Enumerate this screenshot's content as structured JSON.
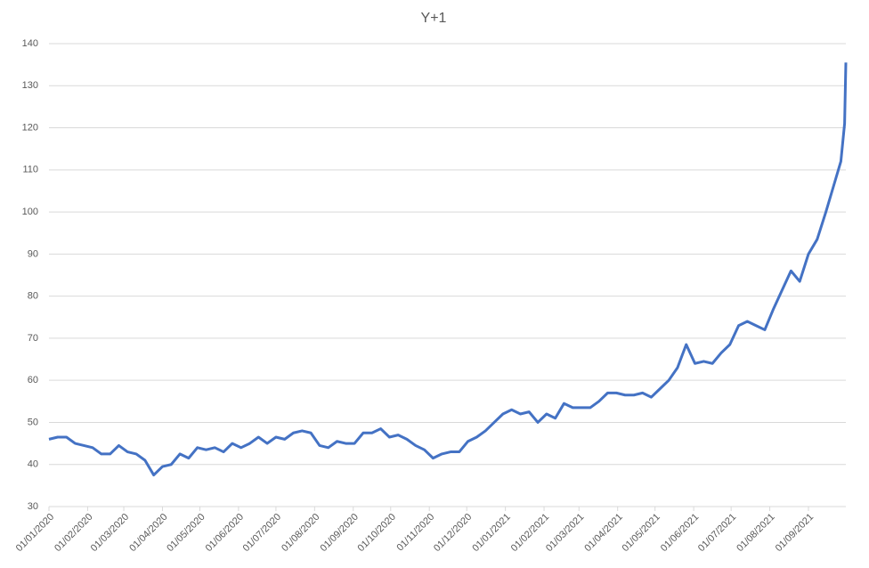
{
  "chart_data": {
    "type": "line",
    "title": "Y+1",
    "x": [
      "01/01/2020",
      "08/01/2020",
      "15/01/2020",
      "22/01/2020",
      "29/01/2020",
      "05/02/2020",
      "12/02/2020",
      "19/02/2020",
      "26/02/2020",
      "04/03/2020",
      "11/03/2020",
      "18/03/2020",
      "25/03/2020",
      "01/04/2020",
      "08/04/2020",
      "15/04/2020",
      "22/04/2020",
      "29/04/2020",
      "06/05/2020",
      "13/05/2020",
      "20/05/2020",
      "27/05/2020",
      "03/06/2020",
      "10/06/2020",
      "17/06/2020",
      "24/06/2020",
      "01/07/2020",
      "08/07/2020",
      "15/07/2020",
      "22/07/2020",
      "29/07/2020",
      "05/08/2020",
      "12/08/2020",
      "19/08/2020",
      "26/08/2020",
      "02/09/2020",
      "09/09/2020",
      "16/09/2020",
      "23/09/2020",
      "30/09/2020",
      "07/10/2020",
      "14/10/2020",
      "21/10/2020",
      "28/10/2020",
      "04/11/2020",
      "11/11/2020",
      "18/11/2020",
      "25/11/2020",
      "02/12/2020",
      "09/12/2020",
      "16/12/2020",
      "23/12/2020",
      "30/12/2020",
      "06/01/2021",
      "13/01/2021",
      "20/01/2021",
      "27/01/2021",
      "03/02/2021",
      "10/02/2021",
      "17/02/2021",
      "24/02/2021",
      "03/03/2021",
      "10/03/2021",
      "17/03/2021",
      "24/03/2021",
      "31/03/2021",
      "07/04/2021",
      "14/04/2021",
      "21/04/2021",
      "28/04/2021",
      "05/05/2021",
      "12/05/2021",
      "19/05/2021",
      "26/05/2021",
      "02/06/2021",
      "09/06/2021",
      "16/06/2021",
      "23/06/2021",
      "30/06/2021",
      "07/07/2021",
      "14/07/2021",
      "21/07/2021",
      "28/07/2021",
      "04/08/2021",
      "11/08/2021",
      "18/08/2021",
      "25/08/2021",
      "01/09/2021",
      "08/09/2021",
      "15/09/2021",
      "22/09/2021",
      "27/09/2021",
      "30/09/2021",
      "01/10/2021"
    ],
    "series": [
      {
        "color": "#4472c4",
        "values": [
          46,
          46.5,
          46.5,
          45,
          44.5,
          44,
          42.5,
          42.5,
          44.5,
          43,
          42.5,
          41,
          37.5,
          39.5,
          40,
          42.5,
          41.5,
          44,
          43.5,
          44,
          43,
          45,
          44,
          45,
          46.5,
          45,
          46.5,
          46,
          47.5,
          48,
          47.5,
          44.5,
          44,
          45.5,
          45,
          45,
          47.5,
          47.5,
          48.5,
          46.5,
          47,
          46,
          44.5,
          43.5,
          41.5,
          42.5,
          43,
          43,
          45.5,
          46.5,
          48,
          50,
          52,
          53,
          52,
          52.5,
          50,
          52,
          51,
          54.5,
          53.5,
          53.5,
          53.5,
          55,
          57,
          57,
          56.5,
          56.5,
          57,
          56,
          58,
          60,
          63,
          68.5,
          64,
          64.5,
          64,
          66.5,
          68.5,
          73,
          74,
          73,
          72,
          77,
          81.5,
          86,
          83.5,
          90,
          93.5,
          100,
          107,
          112,
          121,
          135.5
        ]
      }
    ],
    "xlim": [
      "01/01/2020",
      "01/10/2021"
    ],
    "xticks": [
      "01/01/2020",
      "01/02/2020",
      "01/03/2020",
      "01/04/2020",
      "01/05/2020",
      "01/06/2020",
      "01/07/2020",
      "01/08/2020",
      "01/09/2020",
      "01/10/2020",
      "01/11/2020",
      "01/12/2020",
      "01/01/2021",
      "01/02/2021",
      "01/03/2021",
      "01/04/2021",
      "01/05/2021",
      "01/06/2021",
      "01/07/2021",
      "01/08/2021",
      "01/09/2021"
    ],
    "ylim": [
      30,
      140
    ],
    "yticks": [
      30,
      40,
      50,
      60,
      70,
      80,
      90,
      100,
      110,
      120,
      130,
      140
    ],
    "grid": true
  }
}
